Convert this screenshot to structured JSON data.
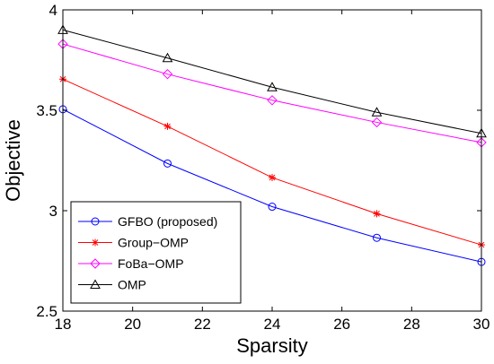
{
  "chart_data": {
    "type": "line",
    "xlabel": "Sparsity",
    "ylabel": "Objective",
    "x": [
      18,
      21,
      24,
      27,
      30
    ],
    "xlim": [
      18,
      30
    ],
    "ylim": [
      2.5,
      4
    ],
    "xticks": [
      18,
      20,
      22,
      24,
      26,
      28,
      30
    ],
    "yticks": [
      2.5,
      3,
      3.5,
      4
    ],
    "ytick_labels": [
      "2.5",
      "3",
      "3.5",
      "4"
    ],
    "grid": false,
    "legend_position": "bottom-left",
    "series": [
      {
        "name": "GFBO (proposed)",
        "values": [
          3.505,
          3.235,
          3.02,
          2.865,
          2.745
        ],
        "color": "#0000ff",
        "marker": "circle"
      },
      {
        "name": "Group−OMP",
        "values": [
          3.655,
          3.42,
          3.165,
          2.985,
          2.83
        ],
        "color": "#ff0000",
        "marker": "asterisk"
      },
      {
        "name": "FoBa−OMP",
        "values": [
          3.83,
          3.68,
          3.55,
          3.44,
          3.34
        ],
        "color": "#ff00ff",
        "marker": "diamond"
      },
      {
        "name": "OMP",
        "values": [
          3.9,
          3.76,
          3.615,
          3.49,
          3.385
        ],
        "color": "#000000",
        "marker": "triangle"
      }
    ]
  }
}
